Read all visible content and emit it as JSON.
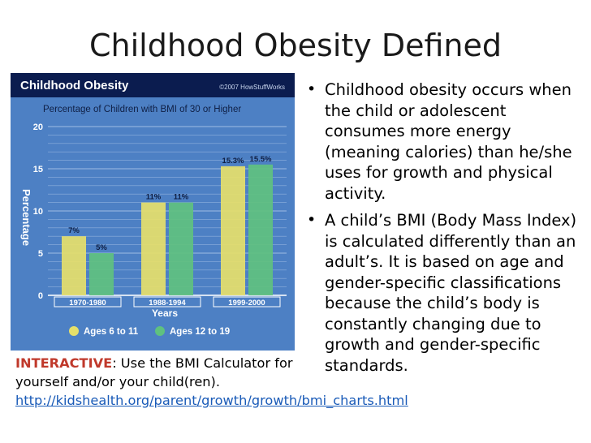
{
  "slide": {
    "title": "Childhood Obesity Defined"
  },
  "bullets": [
    "Childhood obesity occurs when the child or adolescent consumes more energy (meaning calories) than he/she uses for growth and physical activity.",
    "A child’s BMI (Body Mass Index) is calculated differently than an adult’s. It is based on age and gender-specific classifications because the child’s body is constantly changing due to growth and gender-specific standards."
  ],
  "interactive": {
    "keyword": "INTERACTIVE",
    "text": ": Use the BMI Calculator for yourself and/or your child(ren).",
    "link_text": "http://kidshealth.org/parent/growth/growth/bmi_charts.html"
  },
  "chart_data": {
    "type": "bar",
    "title": "Childhood Obesity",
    "subtitle": "Percentage of Children with BMI of 30 or Higher",
    "credit": "©2007 HowStuffWorks",
    "xlabel": "Years",
    "ylabel": "Percentage",
    "categories": [
      "1970-1980",
      "1988-1994",
      "1999-2000"
    ],
    "series": [
      {
        "name": "Ages 6 to 11",
        "values": [
          7,
          11,
          15.3
        ],
        "labels": [
          "7%",
          "11%",
          "15.3%"
        ],
        "color": "#e6e06a"
      },
      {
        "name": "Ages 12 to 19",
        "values": [
          5,
          11,
          15.5
        ],
        "labels": [
          "5%",
          "11%",
          "15.5%"
        ],
        "color": "#5fc17f"
      }
    ],
    "yticks": [
      0,
      5,
      10,
      15,
      20
    ],
    "ylim": [
      0,
      20
    ],
    "grid": true,
    "legend": "bottom",
    "colors": {
      "background": "#4d80c4",
      "header": "#0b1c4f",
      "accent": "#f2d43a"
    }
  }
}
